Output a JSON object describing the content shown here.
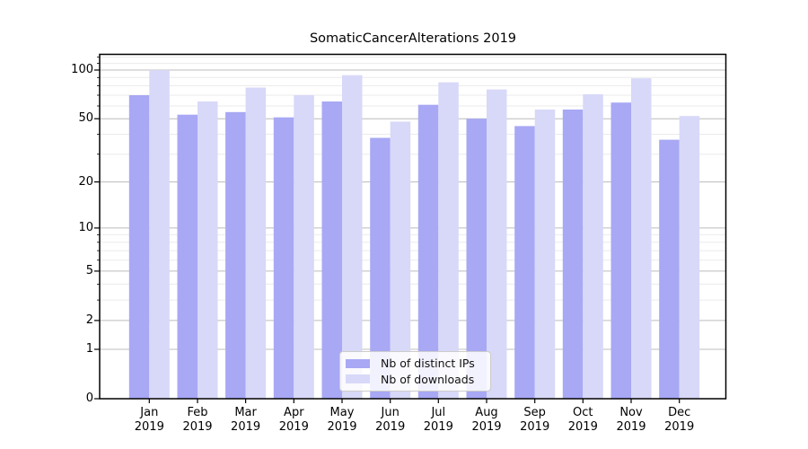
{
  "chart_data": {
    "type": "bar",
    "title": "SomaticCancerAlterations 2019",
    "yscale": "log1p",
    "grid": "both",
    "year": "2019",
    "categories": [
      "Jan",
      "Feb",
      "Mar",
      "Apr",
      "May",
      "Jun",
      "Jul",
      "Aug",
      "Sep",
      "Oct",
      "Nov",
      "Dec"
    ],
    "series": [
      {
        "name": "Nb of distinct IPs",
        "color": "#a8a8f5",
        "values": [
          70,
          53,
          55,
          51,
          64,
          38,
          61,
          50,
          45,
          57,
          63,
          37
        ]
      },
      {
        "name": "Nb of downloads",
        "color": "#d8d8f8",
        "values": [
          100,
          64,
          78,
          70,
          93,
          48,
          84,
          76,
          57,
          71,
          89,
          52
        ]
      }
    ],
    "yticks": [
      0,
      1,
      2,
      5,
      10,
      20,
      50,
      100
    ],
    "minor_yticks": [
      3,
      4,
      6,
      7,
      8,
      9,
      30,
      40,
      60,
      70,
      80,
      90,
      110,
      120
    ],
    "ylim": [
      0,
      125
    ],
    "legend_position": "lower center",
    "colors": {
      "grid_major": "#bcbcbc",
      "grid_minor": "#ebebeb",
      "spine": "#000000",
      "text": "#000000"
    }
  }
}
